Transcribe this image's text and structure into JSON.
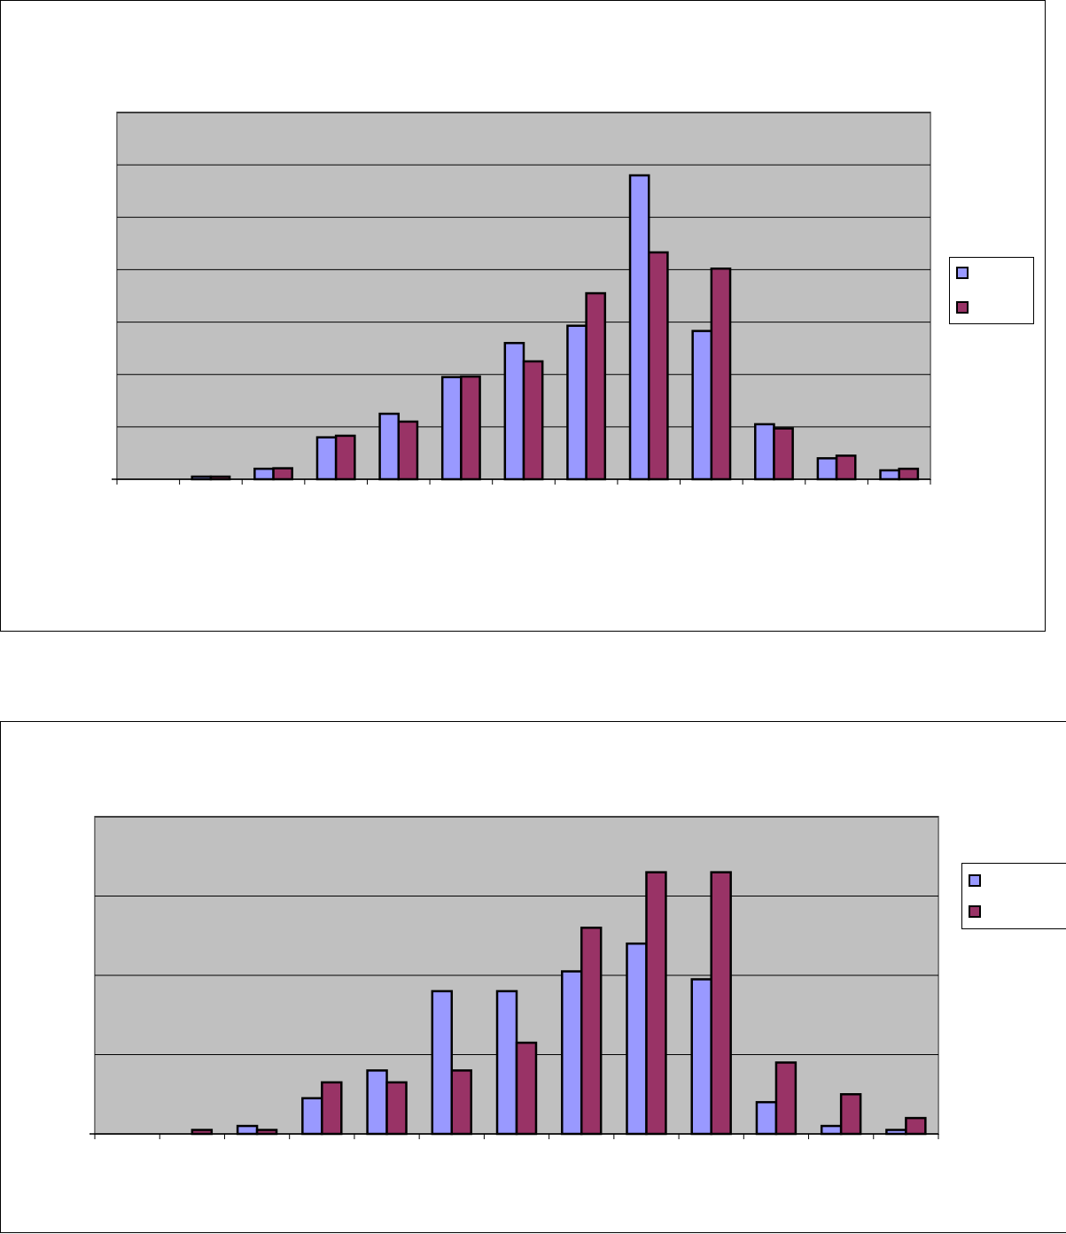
{
  "colors": {
    "plot_background": "#c0c0c0",
    "gridline": "#000000",
    "series_1": "#9999ff",
    "series_2": "#993366",
    "bar_outline": "#000000"
  },
  "chart_data": [
    {
      "type": "bar",
      "title": "",
      "xlabel": "",
      "ylabel": "",
      "categories": [
        "",
        "",
        "",
        "",
        "",
        "",
        "",
        "",
        "",
        "",
        "",
        "",
        ""
      ],
      "series": [
        {
          "name": "",
          "values": [
            0,
            0.5,
            2,
            8,
            12.5,
            19.5,
            26,
            29.3,
            58,
            28.3,
            10.5,
            4,
            1.7
          ]
        },
        {
          "name": "",
          "values": [
            0,
            0.5,
            2.1,
            8.3,
            11,
            19.6,
            22.5,
            35.5,
            43.3,
            40.2,
            9.7,
            4.5,
            2
          ]
        }
      ],
      "ylim": [
        0,
        70
      ],
      "ytick_step": 10,
      "grid": true,
      "legend": "right"
    },
    {
      "type": "bar",
      "title": "",
      "xlabel": "",
      "ylabel": "",
      "categories": [
        "",
        "",
        "",
        "",
        "",
        "",
        "",
        "",
        "",
        "",
        "",
        "",
        ""
      ],
      "series": [
        {
          "name": "",
          "values": [
            0,
            0,
            0.2,
            0.9,
            1.6,
            3.6,
            3.6,
            4.1,
            4.8,
            3.9,
            0.8,
            0.2,
            0.1
          ]
        },
        {
          "name": "",
          "values": [
            0,
            0.1,
            0.1,
            1.3,
            1.3,
            1.6,
            2.3,
            5.2,
            6.6,
            6.6,
            1.8,
            1,
            0.4
          ]
        }
      ],
      "ylim": [
        0,
        8
      ],
      "ytick_step": 2,
      "grid": true,
      "legend": "right"
    }
  ]
}
